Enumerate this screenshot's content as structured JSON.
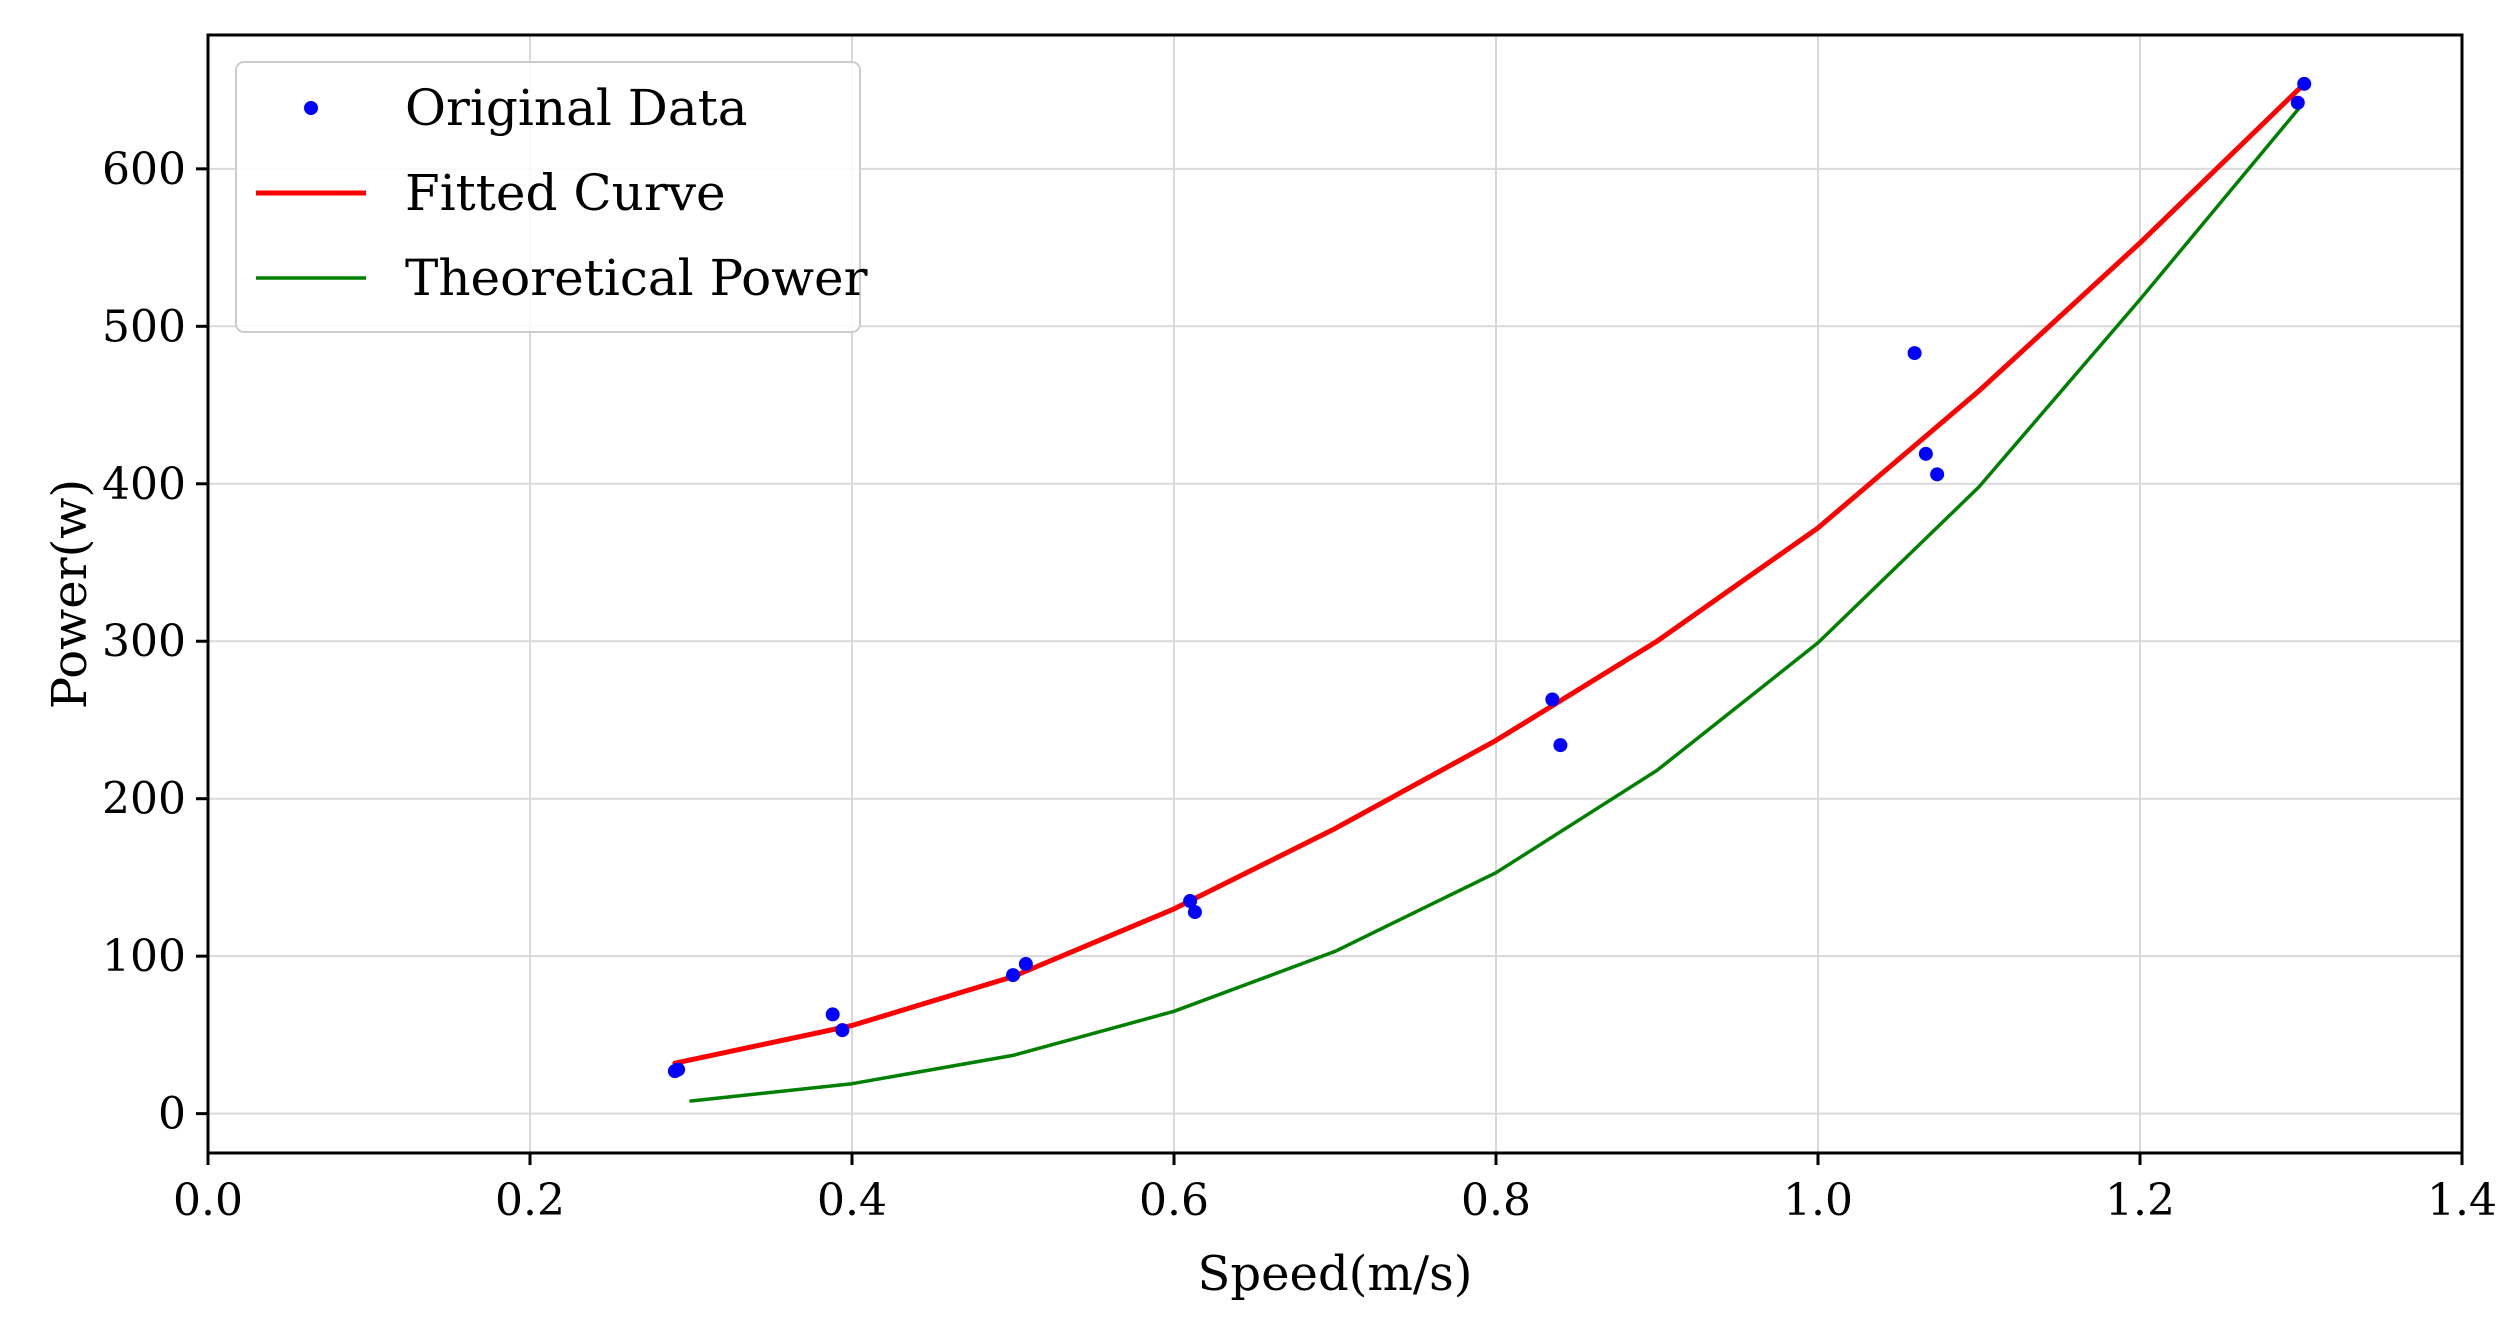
{
  "chart_data": {
    "type": "scatter",
    "title": "",
    "xlabel": "Speed(m/s)",
    "ylabel": "Power(w)",
    "xlim": [
      0.0,
      1.4
    ],
    "ylim": [
      -25,
      685
    ],
    "xticks": [
      0.0,
      0.2,
      0.4,
      0.6,
      0.8,
      1.0,
      1.2,
      1.4
    ],
    "xtick_labels": [
      "0.0",
      "0.2",
      "0.4",
      "0.6",
      "0.8",
      "1.0",
      "1.2",
      "1.4"
    ],
    "yticks": [
      0,
      100,
      200,
      300,
      400,
      500,
      600
    ],
    "ytick_labels": [
      "0",
      "100",
      "200",
      "300",
      "400",
      "500",
      "600"
    ],
    "grid": true,
    "legend_position": "top-left",
    "series": [
      {
        "name": "Original Data",
        "kind": "scatter",
        "color": "#0000ff",
        "points": [
          [
            0.29,
            27
          ],
          [
            0.292,
            28
          ],
          [
            0.388,
            63
          ],
          [
            0.394,
            53
          ],
          [
            0.5,
            88
          ],
          [
            0.508,
            95
          ],
          [
            0.61,
            135
          ],
          [
            0.613,
            128
          ],
          [
            0.835,
            263
          ],
          [
            0.84,
            234
          ],
          [
            1.06,
            483
          ],
          [
            1.067,
            419
          ],
          [
            1.074,
            406
          ],
          [
            1.298,
            642
          ],
          [
            1.302,
            654
          ]
        ]
      },
      {
        "name": "Fitted Curve",
        "kind": "line",
        "color": "#ff0000",
        "x_range": [
          0.29,
          1.3
        ],
        "points": [
          [
            0.29,
            32
          ],
          [
            0.4,
            56
          ],
          [
            0.5,
            87
          ],
          [
            0.6,
            130
          ],
          [
            0.7,
            181
          ],
          [
            0.8,
            237
          ],
          [
            0.9,
            300
          ],
          [
            1.0,
            372
          ],
          [
            1.1,
            459
          ],
          [
            1.2,
            553
          ],
          [
            1.3,
            652
          ]
        ]
      },
      {
        "name": "Theoretical Power",
        "kind": "line",
        "color": "#008000",
        "x_range": [
          0.3,
          1.3
        ],
        "points": [
          [
            0.3,
            8
          ],
          [
            0.4,
            19
          ],
          [
            0.5,
            37
          ],
          [
            0.6,
            65
          ],
          [
            0.7,
            103
          ],
          [
            0.8,
            153
          ],
          [
            0.9,
            218
          ],
          [
            1.0,
            299
          ],
          [
            1.1,
            398
          ],
          [
            1.2,
            517
          ],
          [
            1.3,
            640
          ]
        ]
      }
    ]
  }
}
